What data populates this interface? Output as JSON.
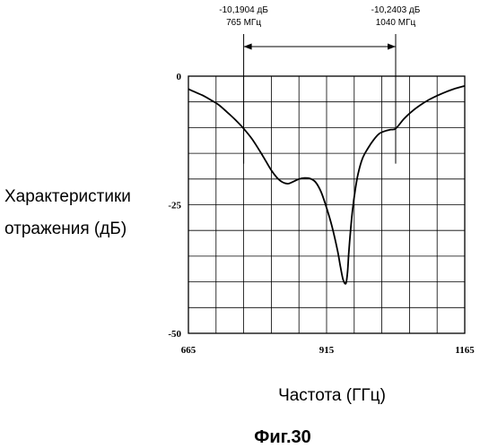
{
  "chart_data": {
    "type": "line",
    "caption": "Фиг.30",
    "xlabel": "Частота (ГГц)",
    "ylabel_lines": [
      "Характеристики",
      "отражения  (дБ)"
    ],
    "xlim": [
      665,
      1165
    ],
    "ylim": [
      -50,
      0
    ],
    "x_ticks": [
      {
        "value": 665,
        "label": "665"
      },
      {
        "value": 915,
        "label": "915"
      },
      {
        "value": 1165,
        "label": "1165"
      }
    ],
    "y_ticks": [
      {
        "value": 0,
        "label": "0"
      },
      {
        "value": -25,
        "label": "-25"
      },
      {
        "value": -50,
        "label": "-50"
      }
    ],
    "grid": true,
    "grid_divisions_x": 10,
    "grid_divisions_y": 10,
    "line_color": "#000000",
    "grid_color": "#000000",
    "markers": [
      {
        "x": 765,
        "level_label": "-10,1904 дБ",
        "freq_label": "765 МГц"
      },
      {
        "x": 1040,
        "level_label": "-10,2403 дБ",
        "freq_label": "1040 МГц"
      }
    ],
    "series": [
      {
        "x": [
          665,
          675,
          690,
          705,
          720,
          735,
          750,
          765,
          780,
          795,
          805,
          815,
          825,
          835,
          845,
          855,
          865,
          875,
          885,
          895,
          905,
          915,
          925,
          935,
          940,
          945,
          950,
          953,
          955,
          958,
          962,
          967,
          972,
          980,
          990,
          1000,
          1010,
          1020,
          1030,
          1040,
          1055,
          1070,
          1085,
          1100,
          1115,
          1130,
          1145,
          1165
        ],
        "y": [
          -2.5,
          -3.0,
          -3.7,
          -4.6,
          -5.6,
          -7.0,
          -8.5,
          -10.2,
          -12.2,
          -14.7,
          -16.5,
          -18.3,
          -19.7,
          -20.6,
          -20.9,
          -20.5,
          -20.0,
          -19.8,
          -19.9,
          -20.6,
          -22.5,
          -25.6,
          -29.3,
          -34.0,
          -37.0,
          -39.6,
          -40.3,
          -38.0,
          -34.6,
          -30.5,
          -26.0,
          -22.0,
          -19.0,
          -16.0,
          -14.0,
          -12.4,
          -11.2,
          -10.7,
          -10.4,
          -10.2,
          -8.3,
          -6.8,
          -5.6,
          -4.6,
          -3.8,
          -3.1,
          -2.5,
          -1.9
        ]
      }
    ]
  }
}
